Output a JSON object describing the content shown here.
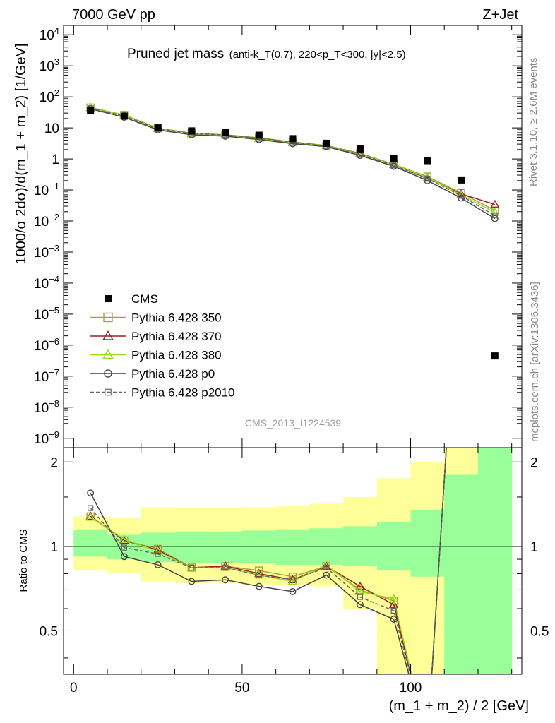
{
  "header": {
    "energy_label": "7000 GeV pp",
    "process_label": "Z+Jet"
  },
  "side": {
    "rivet": "Rivet 3.1.10, ≥ 2.6M events",
    "mcplots": "mcplots.cern.ch [arXiv:1306.3436]"
  },
  "chart_data": {
    "type": "line",
    "title": "Pruned jet mass",
    "title_detail": "(anti-k_T(0.7), 220<p_T<300, |y|<2.5)",
    "watermark": "CMS_2013_I1224539",
    "xlabel": "(m_1 + m_2) / 2 [GeV]",
    "ylabel": "1000/σ 2dσ)/d(m_1 + m_2) [1/GeV]",
    "ratio_ylabel": "Ratio to CMS",
    "xlim": [
      -3,
      133
    ],
    "ylim": [
      5e-10,
      20000.0
    ],
    "yscale": "log",
    "ratio_ylim": [
      0.35,
      2.25
    ],
    "x_ticks": [
      "0",
      "50",
      "100"
    ],
    "x": [
      5,
      15,
      25,
      35,
      45,
      55,
      65,
      75,
      85,
      95,
      105,
      115,
      125
    ],
    "cms": [
      36,
      24,
      10,
      8,
      7,
      5.8,
      4.5,
      3.2,
      2.1,
      1.05,
      0.88,
      0.21,
      4.5e-07
    ],
    "series": [
      {
        "name": "Pythia 6.428 350",
        "color": "#a8a03a",
        "marker": "square-open",
        "dash": "solid",
        "values": [
          45,
          26,
          9.8,
          6.7,
          6.0,
          4.8,
          3.5,
          2.7,
          1.5,
          0.67,
          0.27,
          0.08,
          0.022
        ]
      },
      {
        "name": "Pythia 6.428 370",
        "color": "#a01f2c",
        "marker": "triangle-open",
        "dash": "solid",
        "values": [
          45,
          26,
          9.7,
          6.7,
          5.9,
          4.6,
          3.4,
          2.7,
          1.5,
          0.65,
          0.24,
          0.075,
          0.034
        ]
      },
      {
        "name": "Pythia 6.428 380",
        "color": "#8fdc1a",
        "marker": "triangle-open",
        "dash": "solid",
        "values": [
          45,
          26,
          9.6,
          6.6,
          5.8,
          4.5,
          3.3,
          2.7,
          1.45,
          0.66,
          0.25,
          0.07,
          0.019
        ]
      },
      {
        "name": "Pythia 6.428 p0",
        "color": "#444444",
        "marker": "circle-open",
        "dash": "solid",
        "values": [
          41,
          22,
          8.6,
          6.0,
          5.4,
          4.2,
          3.1,
          2.5,
          1.3,
          0.58,
          0.2,
          0.055,
          0.012
        ]
      },
      {
        "name": "Pythia 6.428 p2010",
        "color": "#666666",
        "marker": "square-small",
        "dash": "dashed",
        "values": [
          43,
          24,
          9.3,
          6.6,
          5.9,
          4.6,
          3.4,
          2.6,
          1.4,
          0.62,
          0.23,
          0.065,
          0.015
        ]
      }
    ],
    "ratio_series": [
      [
        1.28,
        1.05,
        0.98,
        0.84,
        0.85,
        0.82,
        0.78,
        0.85,
        0.7,
        0.64,
        0.2,
        15,
        50
      ],
      [
        1.28,
        1.05,
        0.97,
        0.84,
        0.85,
        0.8,
        0.76,
        0.85,
        0.72,
        0.62,
        0.2,
        15,
        50
      ],
      [
        1.27,
        1.06,
        0.96,
        0.84,
        0.84,
        0.79,
        0.75,
        0.86,
        0.69,
        0.65,
        0.2,
        15,
        50
      ],
      [
        1.55,
        0.92,
        0.86,
        0.75,
        0.76,
        0.72,
        0.69,
        0.79,
        0.62,
        0.55,
        0.2,
        15,
        50
      ],
      [
        1.37,
        0.99,
        0.94,
        0.84,
        0.84,
        0.79,
        0.76,
        0.84,
        0.66,
        0.59,
        0.2,
        15,
        50
      ]
    ],
    "band_inner": [
      [
        0.92,
        1.15
      ],
      [
        0.9,
        1.1
      ],
      [
        0.88,
        1.12
      ],
      [
        0.87,
        1.13
      ],
      [
        0.87,
        1.13
      ],
      [
        0.87,
        1.14
      ],
      [
        0.86,
        1.15
      ],
      [
        0.86,
        1.16
      ],
      [
        0.85,
        1.18
      ],
      [
        0.82,
        1.22
      ],
      [
        0.78,
        1.35
      ],
      [
        0.3,
        1.8
      ],
      [
        0.3,
        3.0
      ]
    ],
    "band_outer": [
      [
        0.82,
        1.28
      ],
      [
        0.8,
        1.27
      ],
      [
        0.75,
        1.38
      ],
      [
        0.74,
        1.37
      ],
      [
        0.74,
        1.37
      ],
      [
        0.73,
        1.38
      ],
      [
        0.73,
        1.4
      ],
      [
        0.72,
        1.42
      ],
      [
        0.6,
        1.5
      ],
      [
        0.3,
        1.75
      ],
      [
        0.3,
        2.0
      ],
      [
        0.3,
        3.0
      ],
      [
        0.3,
        3.0
      ]
    ]
  }
}
